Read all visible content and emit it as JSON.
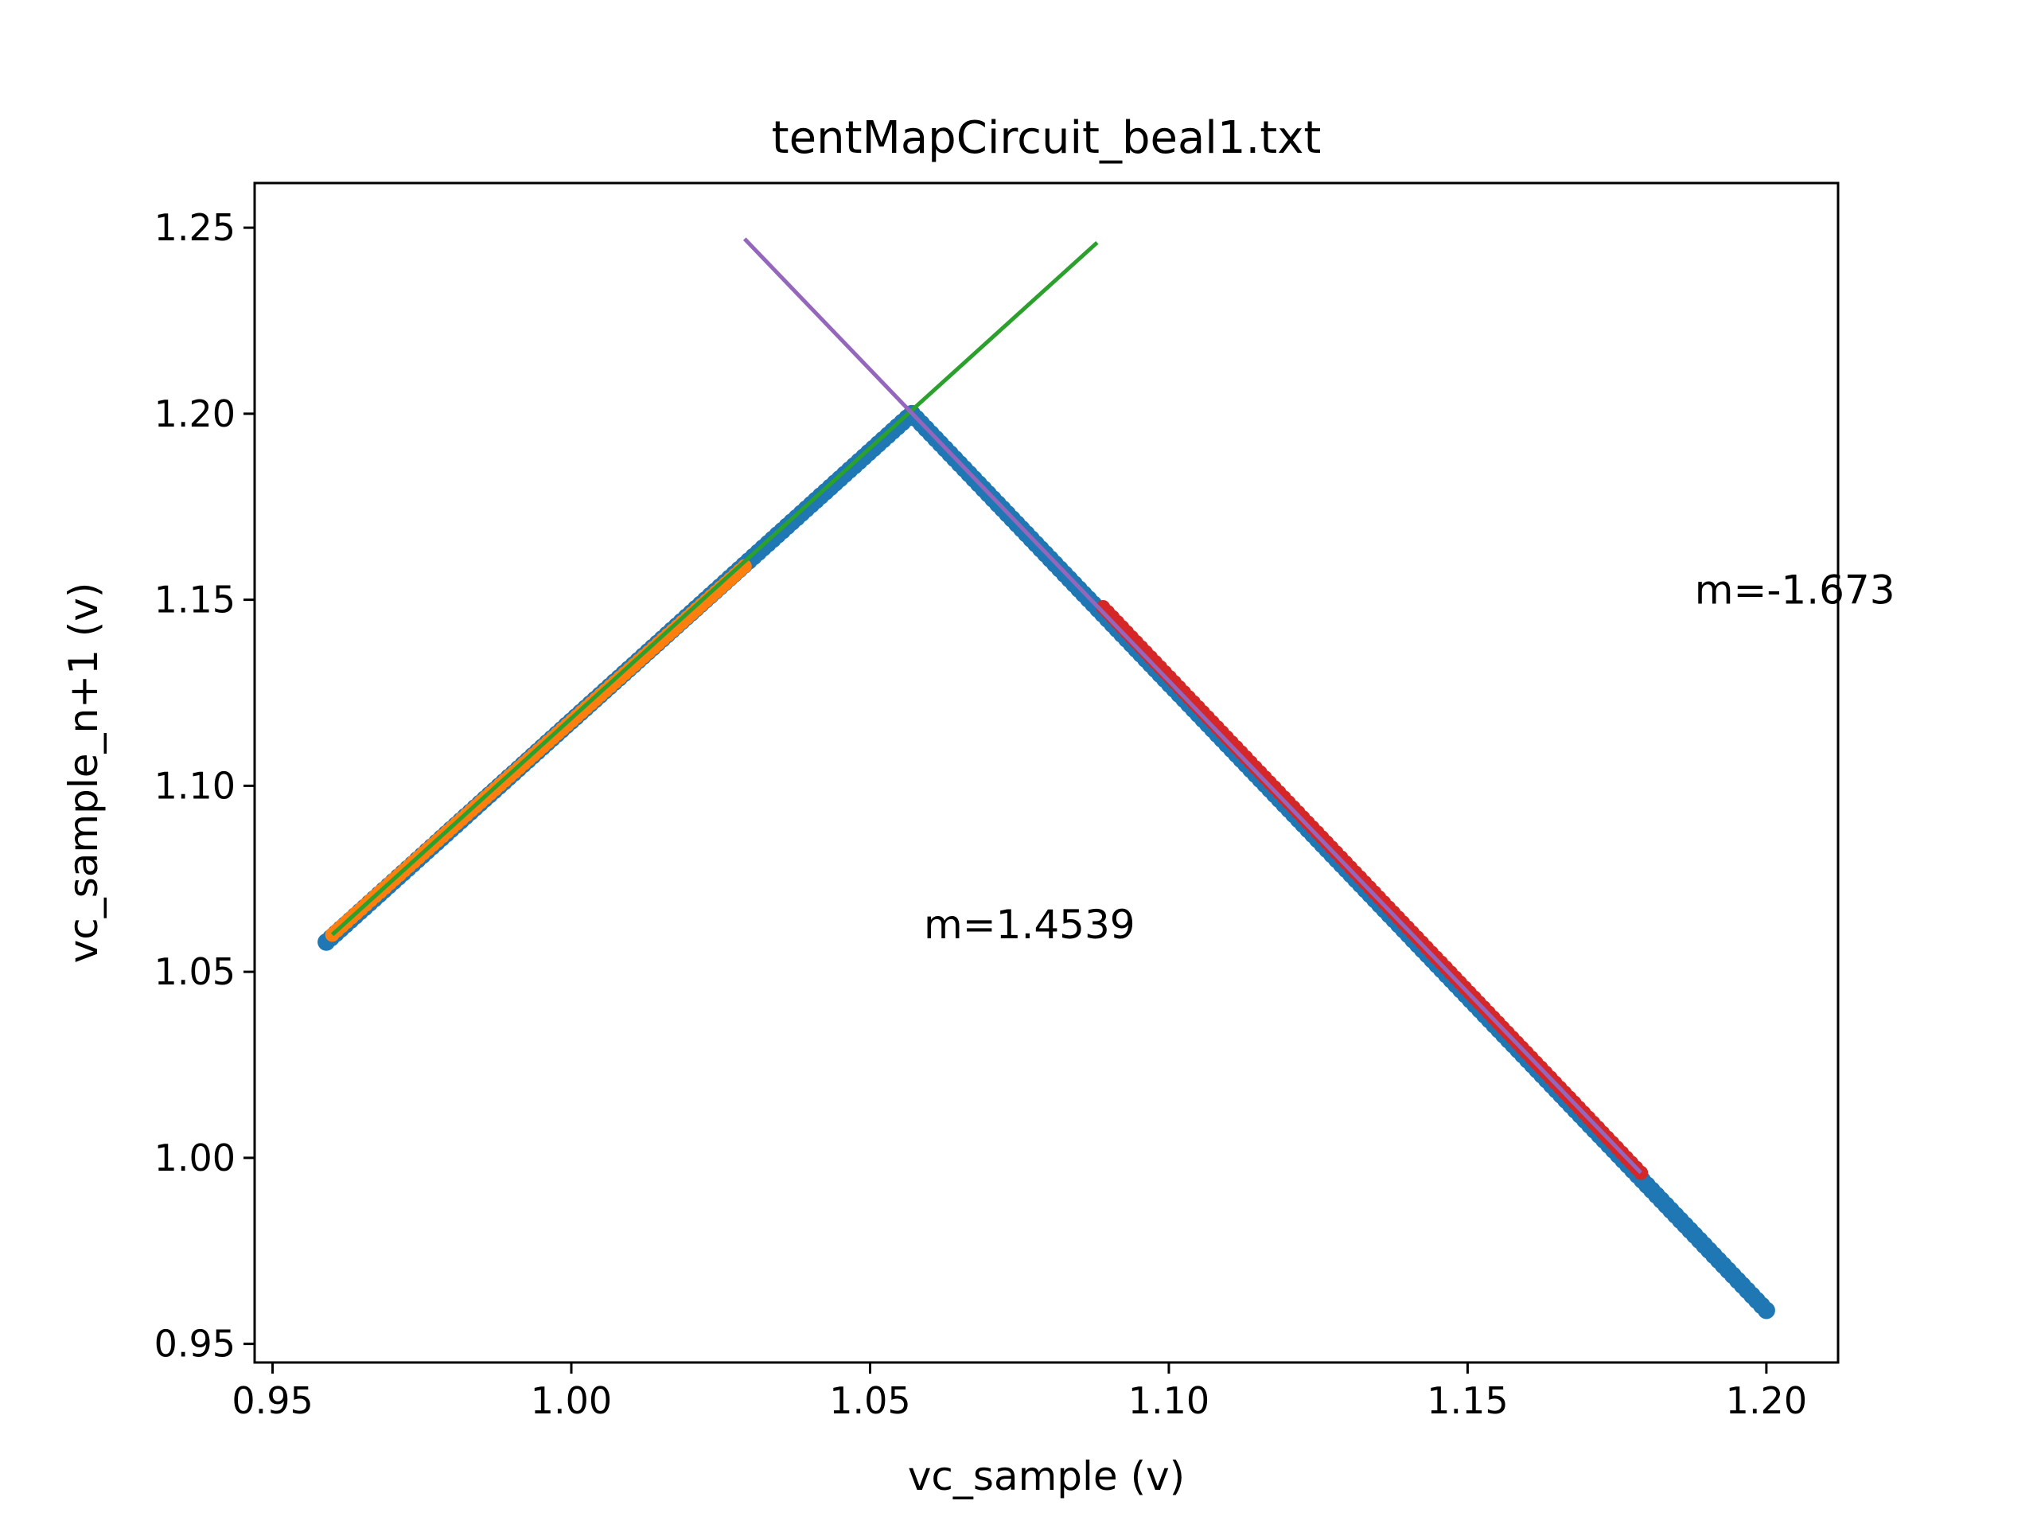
{
  "chart_data": {
    "type": "scatter",
    "title": "tentMapCircuit_beal1.txt",
    "xlabel": "vc_sample (v)",
    "ylabel": "vc_sample_n+1 (v)",
    "xlim": [
      0.947,
      1.212
    ],
    "ylim": [
      0.945,
      1.262
    ],
    "grid": false,
    "x_ticks": [
      0.95,
      1.0,
      1.05,
      1.1,
      1.15,
      1.2
    ],
    "x_tick_labels": [
      "0.95",
      "1.00",
      "1.05",
      "1.10",
      "1.15",
      "1.20"
    ],
    "y_ticks": [
      0.95,
      1.0,
      1.05,
      1.1,
      1.15,
      1.2,
      1.25
    ],
    "y_tick_labels": [
      "0.95",
      "1.00",
      "1.05",
      "1.10",
      "1.15",
      "1.20",
      "1.25"
    ],
    "series": [
      {
        "kind": "scatter",
        "color": "#1f77b4",
        "segments": [
          {
            "x": [
              0.959,
              1.057
            ],
            "y": [
              1.058,
              1.2
            ]
          },
          {
            "x": [
              1.057,
              1.2
            ],
            "y": [
              1.2,
              0.959
            ]
          }
        ]
      },
      {
        "kind": "scatter-highlight",
        "color": "#ff7f0e",
        "segments": [
          {
            "x": [
              0.96,
              1.029
            ],
            "y": [
              1.06,
              1.159
            ]
          }
        ]
      },
      {
        "kind": "scatter-highlight",
        "color": "#d62728",
        "segments": [
          {
            "x": [
              1.089,
              1.179
            ],
            "y": [
              1.148,
              0.996
            ]
          }
        ]
      },
      {
        "kind": "line",
        "color": "#2ca02c",
        "x": [
          0.96,
          1.088
        ],
        "y": [
          1.06,
          1.246
        ]
      },
      {
        "kind": "line",
        "color": "#9467bd",
        "x": [
          1.029,
          1.179
        ],
        "y": [
          1.247,
          0.996
        ]
      }
    ],
    "annotations": [
      {
        "text": "m=1.4539",
        "x": 1.059,
        "y": 1.059
      },
      {
        "text": "m=-1.673",
        "x": 1.188,
        "y": 1.149
      }
    ]
  }
}
